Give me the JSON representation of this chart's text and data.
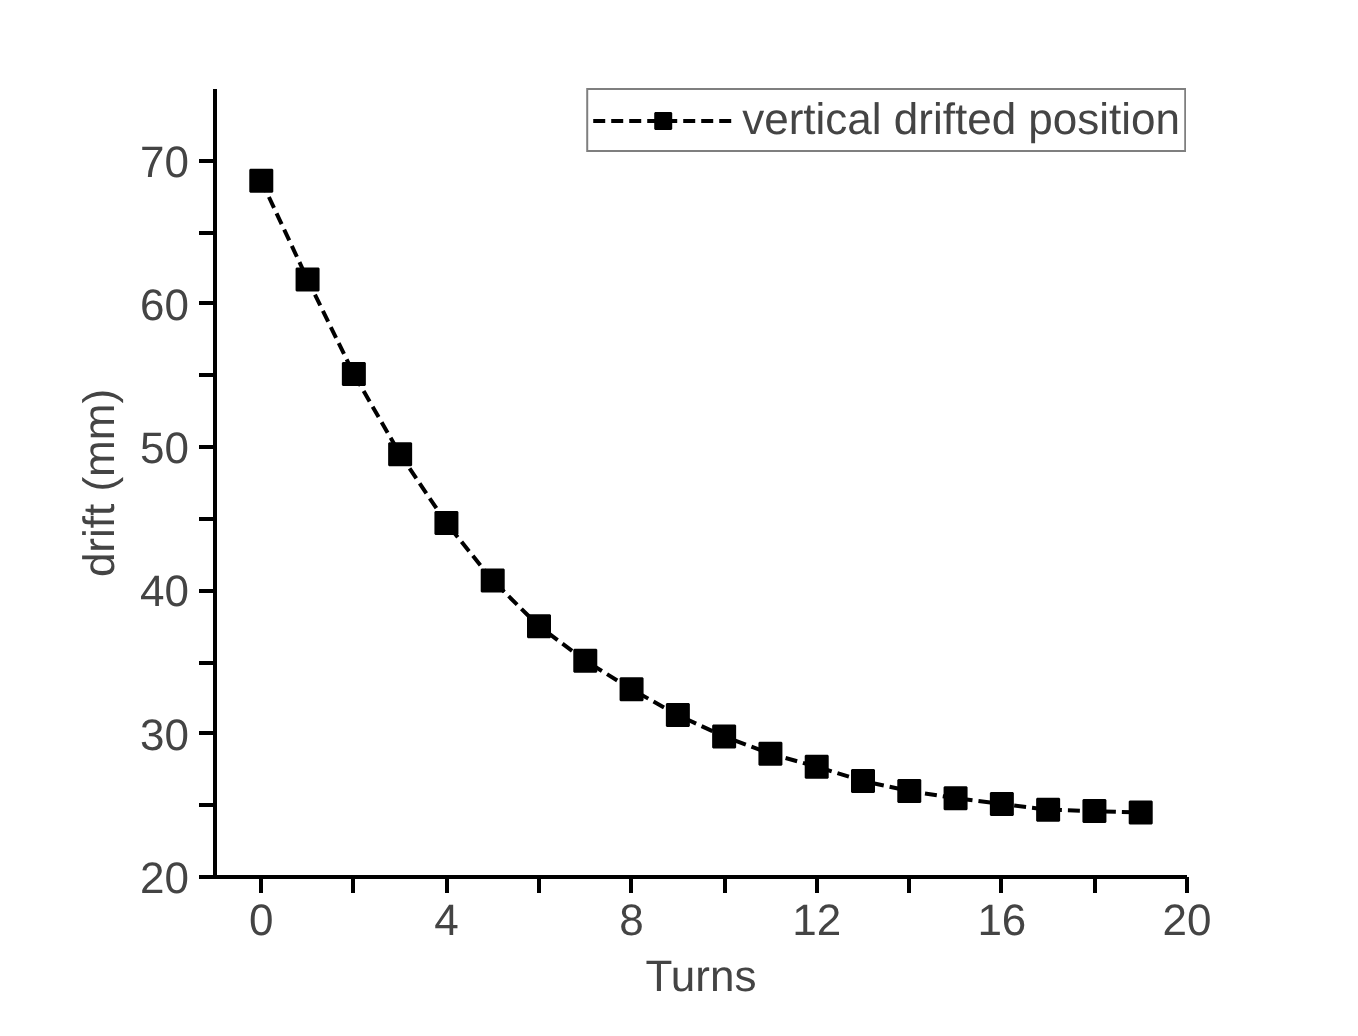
{
  "chart_data": {
    "type": "line",
    "xlabel": "Turns",
    "ylabel": "drift (mm)",
    "x": [
      0,
      1,
      2,
      3,
      4,
      5,
      6,
      7,
      8,
      9,
      10,
      11,
      12,
      13,
      14,
      15,
      16,
      17,
      18,
      19
    ],
    "series": [
      {
        "name": "vertical drifted position",
        "color": "#000000",
        "values": [
          68.6,
          61.7,
          55.1,
          49.5,
          44.7,
          40.7,
          37.5,
          35.1,
          33.1,
          31.3,
          29.8,
          28.6,
          27.7,
          26.7,
          26.0,
          25.5,
          25.1,
          24.7,
          24.6,
          24.5
        ]
      }
    ],
    "xlim": [
      -1,
      20
    ],
    "ylim": [
      20,
      75
    ],
    "xticks": [
      0,
      {
        "value": 2,
        "label": null
      },
      4,
      {
        "value": 6,
        "label": null
      },
      8,
      {
        "value": 10,
        "label": null
      },
      12,
      {
        "value": 14,
        "label": null
      },
      16,
      {
        "value": 18,
        "label": null
      },
      20
    ],
    "yticks": [
      20,
      {
        "value": 25,
        "label": null
      },
      30,
      {
        "value": 35,
        "label": null
      },
      40,
      {
        "value": 45,
        "label": null
      },
      50,
      {
        "value": 55,
        "label": null
      },
      60,
      {
        "value": 65,
        "label": null
      },
      70
    ],
    "grid": false,
    "legend": "top right",
    "marker": "square",
    "line_style": "dashed"
  }
}
